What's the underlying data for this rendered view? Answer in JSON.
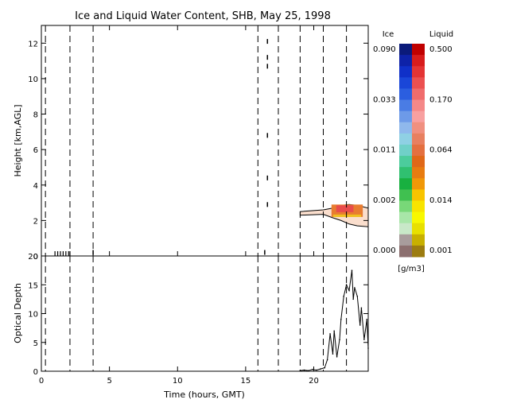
{
  "title": "Ice and Liquid Water Content, SHB, May 25, 1998",
  "colorbar": {
    "ice_header": "Ice",
    "liquid_header": "Liquid",
    "units": "[g/m3]",
    "ice_labels": [
      "0.090",
      "0.033",
      "0.011",
      "0.002",
      "0.000"
    ],
    "liquid_labels": [
      "0.500",
      "0.170",
      "0.064",
      "0.014",
      "0.001"
    ],
    "ice_colors": [
      "#0b1a7a",
      "#0e22a8",
      "#1030c8",
      "#1a46d8",
      "#2b5ee0",
      "#4a7ce4",
      "#6d9ae8",
      "#8fb8ec",
      "#8fd0e4",
      "#70d0c8",
      "#4ccc9c",
      "#30c070",
      "#18b040",
      "#40c050",
      "#78d878",
      "#a8e6a8",
      "#c8e8c8",
      "#a89c9c",
      "#8c6f6f"
    ],
    "liquid_colors": [
      "#c00000",
      "#d81c1c",
      "#e43434",
      "#ec5050",
      "#f06c6c",
      "#f48888",
      "#f8a0a0",
      "#f09080",
      "#e88060",
      "#e47040",
      "#e06818",
      "#e87c10",
      "#f09808",
      "#f8c400",
      "#f8e400",
      "#f8f800",
      "#e8e000",
      "#c8b000",
      "#9c7c10"
    ]
  },
  "chart_data": [
    {
      "type": "heatmap",
      "panel": "top",
      "xlabel": "",
      "ylabel": "Height [km,AGL]",
      "xlim": [
        0,
        24
      ],
      "ylim": [
        0,
        13
      ],
      "yticks": [
        {
          "v": 0,
          "label": "0"
        },
        {
          "v": 2,
          "label": "2"
        },
        {
          "v": 4,
          "label": "4"
        },
        {
          "v": 6,
          "label": "6"
        },
        {
          "v": 8,
          "label": "8"
        },
        {
          "v": 10,
          "label": "10"
        },
        {
          "v": 12,
          "label": "12"
        }
      ],
      "vlines_hours": [
        0.3,
        2.1,
        3.8,
        15.9,
        17.4,
        19.0,
        20.7,
        22.4
      ],
      "cloud_layer": {
        "x": [
          19.0,
          20.7,
          21.4,
          22.0,
          22.6,
          23.2,
          24.0
        ],
        "top_km": [
          2.5,
          2.6,
          2.7,
          2.85,
          2.9,
          2.85,
          2.7
        ],
        "base_km": [
          2.3,
          2.35,
          2.15,
          2.0,
          1.8,
          1.7,
          1.65
        ],
        "liquid_band": {
          "x": [
            21.3,
            23.6
          ],
          "y": [
            2.2,
            2.9
          ],
          "peak_color_value": 0.17
        }
      },
      "sparse_points": [
        {
          "x": 16.6,
          "y": 12.1
        },
        {
          "x": 16.6,
          "y": 11.2
        },
        {
          "x": 16.6,
          "y": 10.7
        },
        {
          "x": 16.6,
          "y": 6.8
        },
        {
          "x": 16.6,
          "y": 4.4
        },
        {
          "x": 16.6,
          "y": 2.9
        },
        {
          "x": 16.4,
          "y": 0.2
        },
        {
          "x": 3.8,
          "y": 0.2
        }
      ],
      "surface_ticks_hours": [
        1.0,
        1.2,
        1.4,
        1.6,
        1.8,
        2.0,
        2.1
      ]
    },
    {
      "type": "line",
      "panel": "bottom",
      "xlabel": "Time (hours, GMT)",
      "ylabel": "Optical Depth",
      "xlim": [
        0,
        24
      ],
      "ylim": [
        0,
        20
      ],
      "xticks": [
        {
          "v": 0,
          "label": "0"
        },
        {
          "v": 5,
          "label": "5"
        },
        {
          "v": 10,
          "label": "10"
        },
        {
          "v": 15,
          "label": "15"
        },
        {
          "v": 20,
          "label": "20"
        }
      ],
      "yticks": [
        {
          "v": 0,
          "label": "0"
        },
        {
          "v": 5,
          "label": "5"
        },
        {
          "v": 10,
          "label": "10"
        },
        {
          "v": 15,
          "label": "15"
        },
        {
          "v": 20,
          "label": "20"
        }
      ],
      "vlines_hours": [
        0.3,
        2.1,
        3.8,
        15.9,
        17.4,
        19.0,
        20.7,
        22.4
      ],
      "series": [
        {
          "x": [
            19.0,
            19.3,
            19.6,
            19.9,
            20.2,
            20.5,
            20.8,
            21.0,
            21.2,
            21.4,
            21.5,
            21.7,
            21.9,
            22.0,
            22.2,
            22.4,
            22.6,
            22.8,
            22.9,
            23.0,
            23.2,
            23.4,
            23.5,
            23.7,
            23.9,
            24.0
          ],
          "y": [
            0.1,
            0.2,
            0.1,
            0.3,
            0.2,
            0.4,
            0.6,
            2.0,
            6.5,
            3.0,
            7.0,
            2.5,
            5.5,
            9.0,
            13.0,
            15.0,
            14.0,
            17.5,
            12.5,
            14.5,
            13.0,
            8.0,
            11.0,
            5.5,
            9.0,
            4.0
          ]
        }
      ]
    }
  ]
}
